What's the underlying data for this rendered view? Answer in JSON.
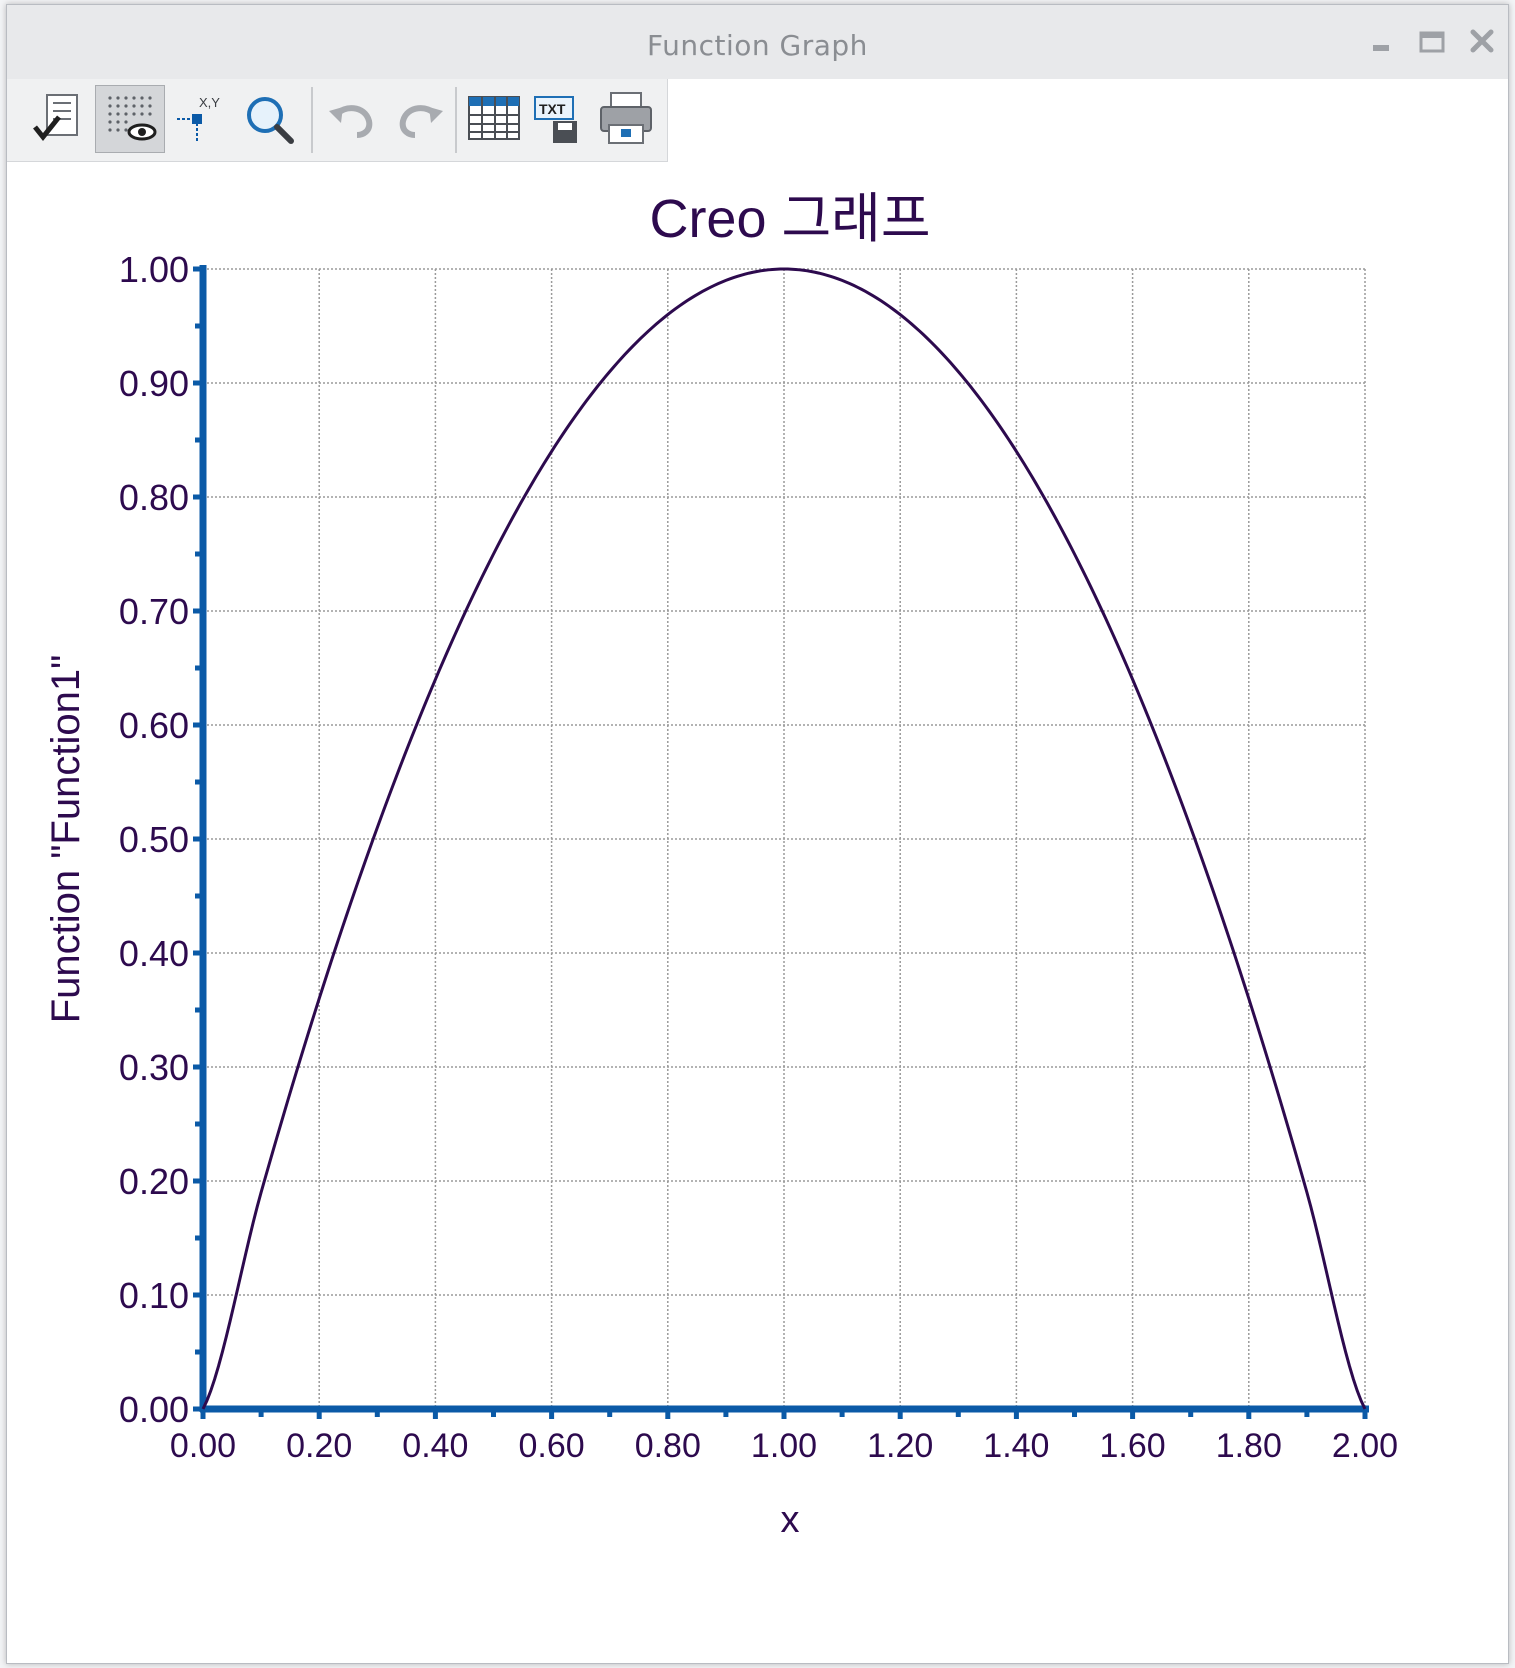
{
  "window": {
    "title": "Function Graph"
  },
  "window_controls": [
    {
      "name": "minimize-button",
      "icon": "minimize-icon"
    },
    {
      "name": "maximize-button",
      "icon": "maximize-icon"
    },
    {
      "name": "close-button",
      "icon": "close-icon"
    }
  ],
  "toolbar": [
    {
      "name": "format-button",
      "icon": "checklist-icon"
    },
    {
      "name": "grid-toggle-button",
      "icon": "grid-eye-icon",
      "active": true
    },
    {
      "name": "coordinates-button",
      "icon": "xy-coordinates-icon",
      "text": "X,Y"
    },
    {
      "name": "zoom-button",
      "icon": "magnifier-icon"
    },
    {
      "name": "undo-button",
      "icon": "undo-icon"
    },
    {
      "name": "redo-button",
      "icon": "redo-icon"
    },
    {
      "name": "table-view-button",
      "icon": "table-icon"
    },
    {
      "name": "export-text-button",
      "icon": "txt-save-icon",
      "text": "TXT"
    },
    {
      "name": "print-button",
      "icon": "printer-icon"
    }
  ],
  "colors": {
    "curve": "#2d0a4e",
    "axis": "#0b5aa7",
    "text": "#2d0a4e",
    "grid": "#9a9a9a"
  },
  "chart_data": {
    "type": "line",
    "title": "Creo 그래프",
    "xlabel": "x",
    "ylabel": "Function \"Function1\"",
    "xlim": [
      0,
      2
    ],
    "ylim": [
      0,
      1
    ],
    "x_ticks": [
      "0.00",
      "0.20",
      "0.40",
      "0.60",
      "0.80",
      "1.00",
      "1.20",
      "1.40",
      "1.60",
      "1.80",
      "2.00"
    ],
    "y_ticks": [
      "0.00",
      "0.10",
      "0.20",
      "0.30",
      "0.40",
      "0.50",
      "0.60",
      "0.70",
      "0.80",
      "0.90",
      "1.00"
    ],
    "grid": true,
    "series": [
      {
        "x": [
          0,
          0.1,
          0.2,
          0.3,
          0.4,
          0.5,
          0.6,
          0.7,
          0.8,
          0.9,
          1.0,
          1.1,
          1.2,
          1.3,
          1.4,
          1.5,
          1.6,
          1.7,
          1.8,
          1.9,
          2.0
        ],
        "y": [
          0,
          0.19,
          0.36,
          0.51,
          0.64,
          0.75,
          0.84,
          0.91,
          0.96,
          0.99,
          1.0,
          0.99,
          0.96,
          0.91,
          0.84,
          0.75,
          0.64,
          0.51,
          0.36,
          0.19,
          0
        ]
      }
    ]
  }
}
